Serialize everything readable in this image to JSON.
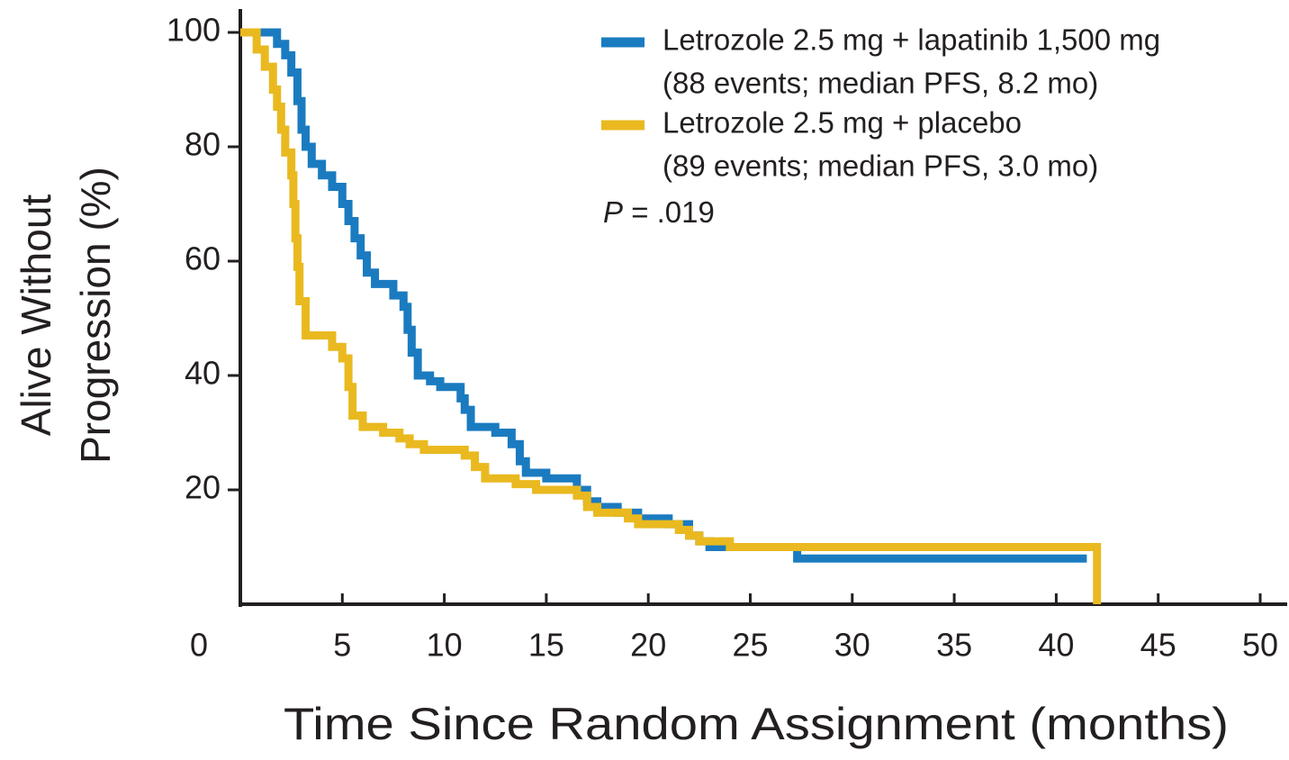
{
  "chart_data": {
    "type": "step",
    "xlabel": "Time Since Random Assignment (months)",
    "ylabel": [
      "Alive Without",
      "Progression (%)"
    ],
    "xlim": [
      0,
      50
    ],
    "xticks": [
      0,
      5,
      10,
      15,
      20,
      25,
      30,
      35,
      40,
      45,
      50
    ],
    "ylim": [
      0,
      100
    ],
    "yticks": [
      20,
      40,
      60,
      80,
      100
    ],
    "legend": "upper right",
    "annotation": {
      "variable": "P",
      "text": "= .019"
    },
    "series": [
      {
        "name": "Letrozole 2.5 mg + lapatinib 1,500 mg",
        "detail": "(88 events; median PFS, 8.2 mo)",
        "color": "#1b7bc0",
        "x": [
          0,
          1.8,
          2.2,
          2.5,
          2.8,
          3.0,
          3.2,
          3.5,
          4.0,
          4.5,
          5.0,
          5.3,
          5.6,
          5.9,
          6.2,
          6.6,
          7.5,
          8.0,
          8.2,
          8.4,
          8.7,
          9.3,
          9.8,
          10.8,
          11.0,
          11.3,
          12.5,
          13.3,
          13.7,
          14.0,
          15.0,
          16.5,
          17.0,
          17.5,
          18.5,
          19.5,
          21.0,
          22.0,
          22.5,
          23.0,
          27.3,
          41.5
        ],
        "values": [
          100,
          98,
          96,
          93,
          88,
          83,
          80,
          77,
          75,
          73,
          70,
          67,
          64,
          61,
          58,
          56,
          54,
          52,
          48,
          44,
          40,
          39,
          38,
          36,
          34,
          31,
          30,
          28,
          25,
          23,
          22,
          20,
          18,
          17,
          16,
          15,
          14,
          12,
          11,
          10,
          8,
          8
        ]
      },
      {
        "name": "Letrozole 2.5 mg + placebo",
        "detail": "(89 events; median PFS, 3.0 mo)",
        "color": "#e9b91f",
        "x": [
          0,
          0.8,
          1.2,
          1.6,
          1.8,
          2.0,
          2.2,
          2.5,
          2.6,
          2.7,
          2.8,
          2.9,
          3.2,
          4.5,
          5.0,
          5.3,
          5.5,
          6.0,
          7.0,
          7.8,
          8.3,
          9.0,
          11.0,
          11.5,
          12.0,
          13.5,
          14.5,
          16.5,
          17.0,
          17.5,
          19.0,
          19.5,
          21.5,
          22.0,
          22.5,
          24.0,
          42.0,
          42.0
        ],
        "values": [
          100,
          97,
          94,
          90,
          87,
          83,
          79,
          75,
          70,
          64,
          59,
          53,
          47,
          45,
          43,
          38,
          33,
          31,
          30,
          29,
          28,
          27,
          26,
          24,
          22,
          21,
          20,
          19,
          17,
          16,
          15,
          14,
          13,
          12,
          11,
          10,
          10,
          0
        ]
      }
    ]
  }
}
